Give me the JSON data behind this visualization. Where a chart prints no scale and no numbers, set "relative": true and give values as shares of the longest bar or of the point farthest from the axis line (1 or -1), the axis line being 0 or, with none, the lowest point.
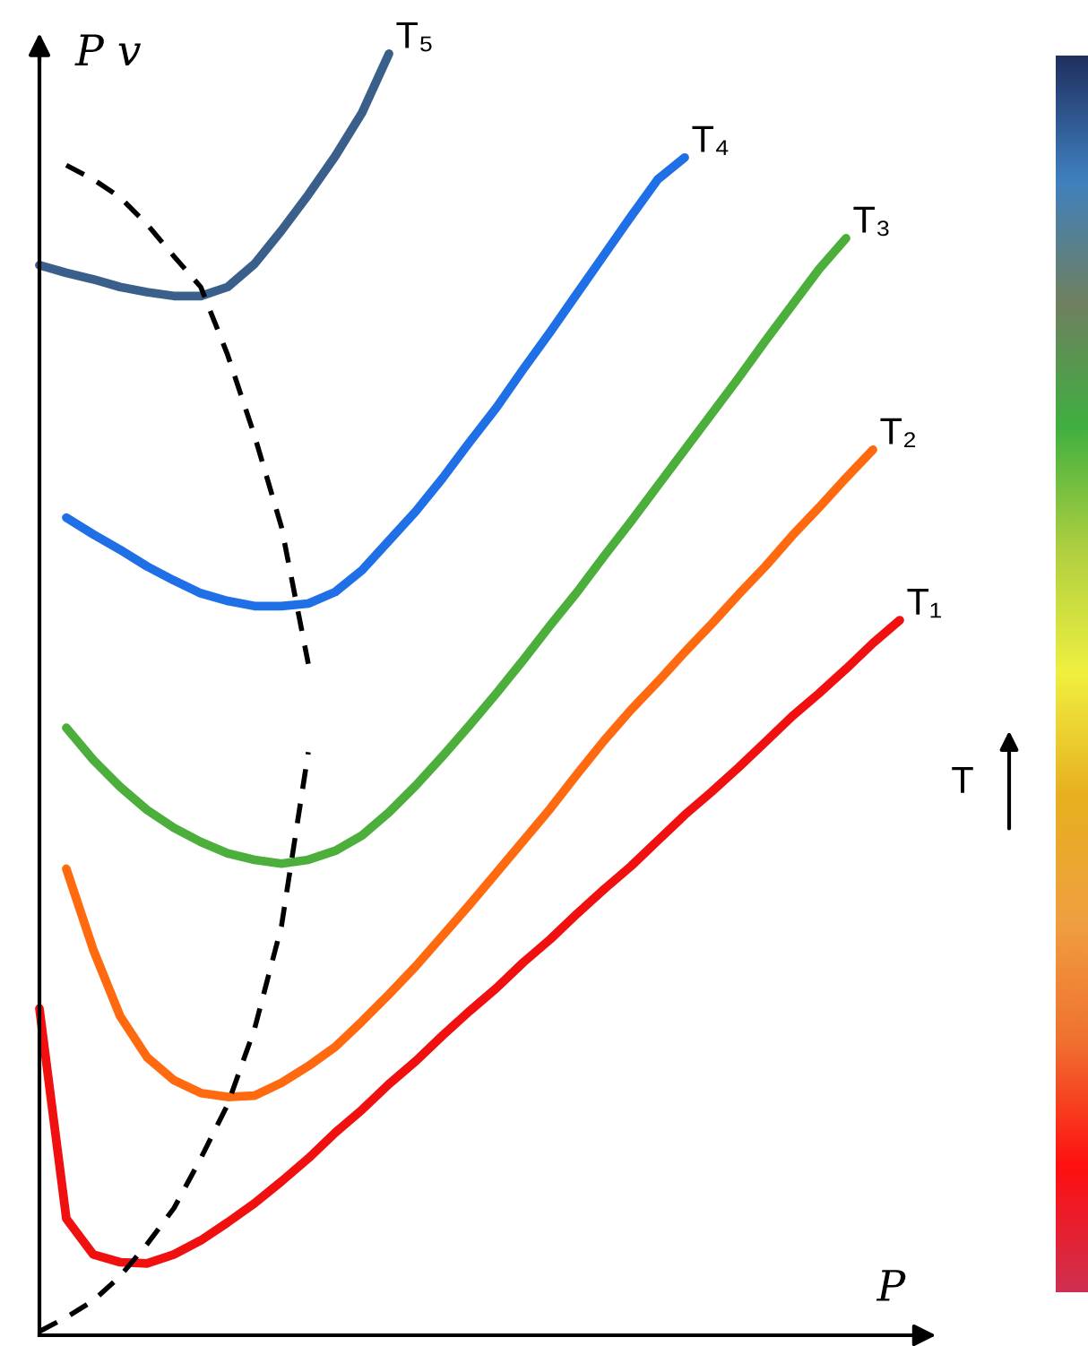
{
  "chart_data": {
    "type": "line",
    "relative": true,
    "xlabel": "P",
    "ylabel": "P v",
    "marker": "none",
    "categories": [
      null,
      null,
      null,
      null,
      null,
      null,
      null,
      null,
      null,
      null,
      null,
      null,
      null,
      null,
      null,
      null,
      null,
      null,
      null,
      null,
      null,
      null,
      null,
      null,
      null,
      null,
      null,
      null,
      null,
      null,
      null,
      null,
      null
    ],
    "annotations": [
      "T"
    ],
    "series": [
      {
        "name": "T₅",
        "color": "#3a5f8a",
        "values": [
          0.835,
          0.829,
          0.824,
          0.818,
          0.814,
          0.811,
          0.811,
          0.818,
          0.836,
          0.862,
          0.89,
          0.92,
          0.954,
          1.0,
          null,
          null,
          null,
          null,
          null,
          null,
          null,
          null,
          null,
          null,
          null,
          null,
          null,
          null,
          null,
          null,
          null,
          null,
          null
        ]
      },
      {
        "name": "T₄",
        "color": "#1f6fe6",
        "values": [
          null,
          0.638,
          0.625,
          0.613,
          0.6,
          0.589,
          0.579,
          0.573,
          0.569,
          0.569,
          0.571,
          0.58,
          0.597,
          0.62,
          0.643,
          0.669,
          0.697,
          0.724,
          0.754,
          0.783,
          0.813,
          0.843,
          0.873,
          0.902,
          0.919,
          null,
          null,
          null,
          null,
          null,
          null,
          null,
          null
        ]
      },
      {
        "name": "T₃",
        "color": "#4caf3c",
        "values": [
          null,
          0.474,
          0.449,
          0.428,
          0.41,
          0.396,
          0.385,
          0.376,
          0.371,
          0.368,
          0.371,
          0.378,
          0.39,
          0.408,
          0.429,
          0.452,
          0.476,
          0.501,
          0.527,
          0.554,
          0.58,
          0.608,
          0.635,
          0.663,
          0.691,
          0.719,
          0.747,
          0.776,
          0.804,
          0.832,
          0.856,
          null,
          null
        ]
      },
      {
        "name": "T₂",
        "color": "#ff6a10",
        "values": [
          null,
          0.364,
          0.301,
          0.249,
          0.217,
          0.199,
          0.189,
          0.186,
          0.187,
          0.197,
          0.21,
          0.225,
          0.245,
          0.266,
          0.288,
          0.312,
          0.336,
          0.361,
          0.386,
          0.411,
          0.438,
          0.464,
          0.488,
          0.51,
          0.533,
          0.555,
          0.578,
          0.6,
          0.624,
          0.646,
          0.669,
          0.691,
          null
        ]
      },
      {
        "name": "T₁",
        "color": "#f01010",
        "values": [
          0.255,
          0.091,
          0.063,
          0.057,
          0.056,
          0.063,
          0.074,
          0.088,
          0.103,
          0.12,
          0.138,
          0.158,
          0.176,
          0.196,
          0.214,
          0.234,
          0.253,
          0.271,
          0.291,
          0.309,
          0.329,
          0.348,
          0.366,
          0.386,
          0.406,
          0.424,
          0.443,
          0.463,
          0.483,
          0.501,
          0.52,
          0.54,
          0.558
        ]
      },
      {
        "color": "#000000",
        "line_style": "dashed",
        "values": [
          null,
          0.913,
          0.902,
          0.888,
          0.867,
          0.842,
          0.818,
          0.765,
          0.702,
          0.631,
          0.524,
          null,
          null,
          null,
          null,
          null,
          null,
          null,
          null,
          null,
          null,
          null,
          null,
          null,
          null,
          null,
          null,
          null,
          null,
          null,
          null,
          null,
          null
        ]
      },
      {
        "color": "#000000",
        "line_style": "dashed",
        "values": [
          0.003,
          0.014,
          0.027,
          0.046,
          0.071,
          0.099,
          0.138,
          0.18,
          0.239,
          0.319,
          0.455,
          null,
          null,
          null,
          null,
          null,
          null,
          null,
          null,
          null,
          null,
          null,
          null,
          null,
          null,
          null,
          null,
          null,
          null,
          null,
          null,
          null,
          null
        ]
      }
    ]
  }
}
